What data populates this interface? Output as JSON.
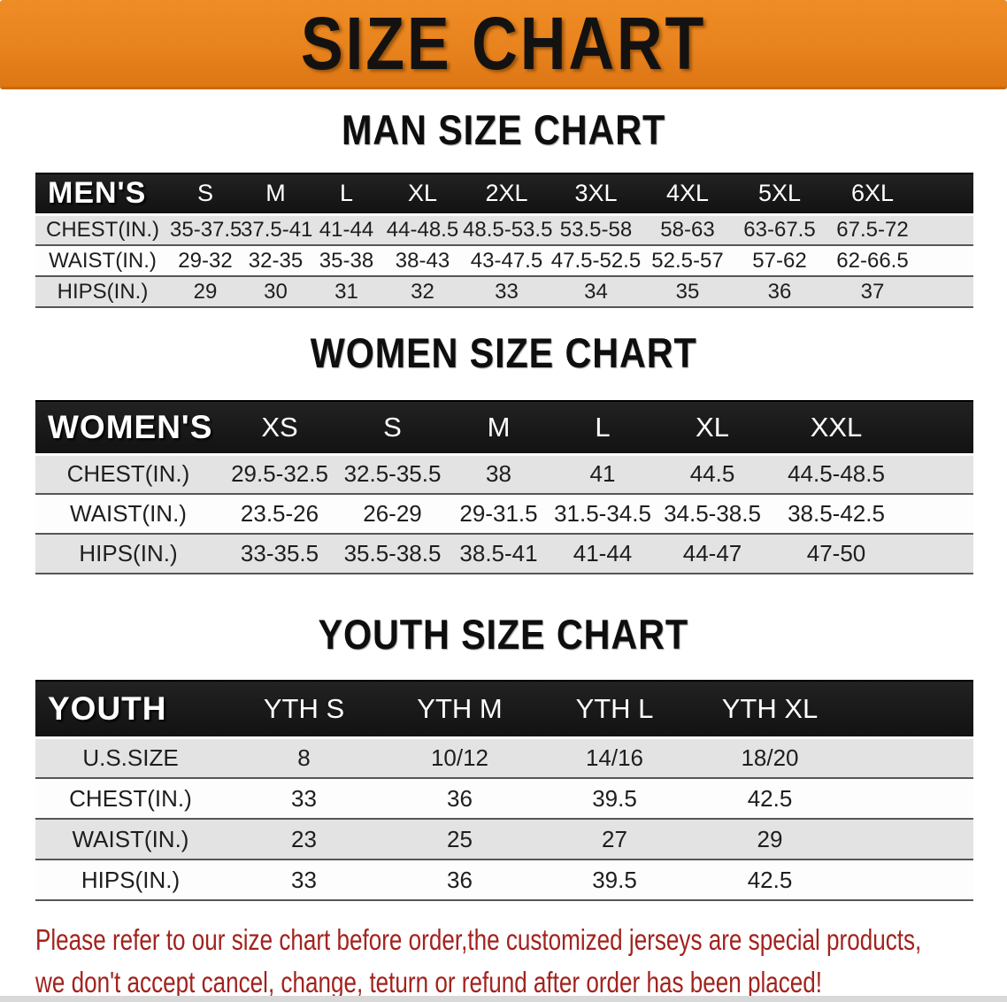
{
  "banner": {
    "title": "SIZE CHART"
  },
  "sections": [
    {
      "id": "men",
      "title": "MAN SIZE CHART",
      "header_label": "MEN'S",
      "columns": [
        "S",
        "M",
        "L",
        "XL",
        "2XL",
        "3XL",
        "4XL",
        "5XL",
        "6XL"
      ],
      "rows": [
        {
          "label": "CHEST(IN.)",
          "values": [
            "35-37.5",
            "37.5-41",
            "41-44",
            "44-48.5",
            "48.5-53.5",
            "53.5-58",
            "58-63",
            "63-67.5",
            "67.5-72"
          ]
        },
        {
          "label": "WAIST(IN.)",
          "values": [
            "29-32",
            "32-35",
            "35-38",
            "38-43",
            "43-47.5",
            "47.5-52.5",
            "52.5-57",
            "57-62",
            "62-66.5"
          ]
        },
        {
          "label": "HIPS(IN.)",
          "values": [
            "29",
            "30",
            "31",
            "32",
            "33",
            "34",
            "35",
            "36",
            "37"
          ]
        }
      ]
    },
    {
      "id": "women",
      "title": "WOMEN SIZE CHART",
      "header_label": "WOMEN'S",
      "columns": [
        "XS",
        "S",
        "M",
        "L",
        "XL",
        "XXL"
      ],
      "rows": [
        {
          "label": "CHEST(IN.)",
          "values": [
            "29.5-32.5",
            "32.5-35.5",
            "38",
            "41",
            "44.5",
            "44.5-48.5"
          ]
        },
        {
          "label": "WAIST(IN.)",
          "values": [
            "23.5-26",
            "26-29",
            "29-31.5",
            "31.5-34.5",
            "34.5-38.5",
            "38.5-42.5"
          ]
        },
        {
          "label": "HIPS(IN.)",
          "values": [
            "33-35.5",
            "35.5-38.5",
            "38.5-41",
            "41-44",
            "44-47",
            "47-50"
          ]
        }
      ]
    },
    {
      "id": "youth",
      "title": "YOUTH SIZE CHART",
      "header_label": "YOUTH",
      "columns": [
        "YTH S",
        "YTH M",
        "YTH L",
        "YTH XL"
      ],
      "rows": [
        {
          "label": "U.S.SIZE",
          "values": [
            "8",
            "10/12",
            "14/16",
            "18/20"
          ]
        },
        {
          "label": "CHEST(IN.)",
          "values": [
            "33",
            "36",
            "39.5",
            "42.5"
          ]
        },
        {
          "label": "WAIST(IN.)",
          "values": [
            "23",
            "25",
            "27",
            "29"
          ]
        },
        {
          "label": "HIPS(IN.)",
          "values": [
            "33",
            "36",
            "39.5",
            "42.5"
          ]
        }
      ]
    }
  ],
  "disclaimer": {
    "line1": "Please refer to our size chart before order,the customized jerseys are special products,",
    "line2": "we don't accept cancel, change, teturn or refund after order has been placed!"
  },
  "colors": {
    "banner_orange": "#E8831E",
    "header_bar_black": "#161616",
    "row_stripe_gray": "#E3E3E3",
    "disclaimer_red": "#A2231E"
  }
}
